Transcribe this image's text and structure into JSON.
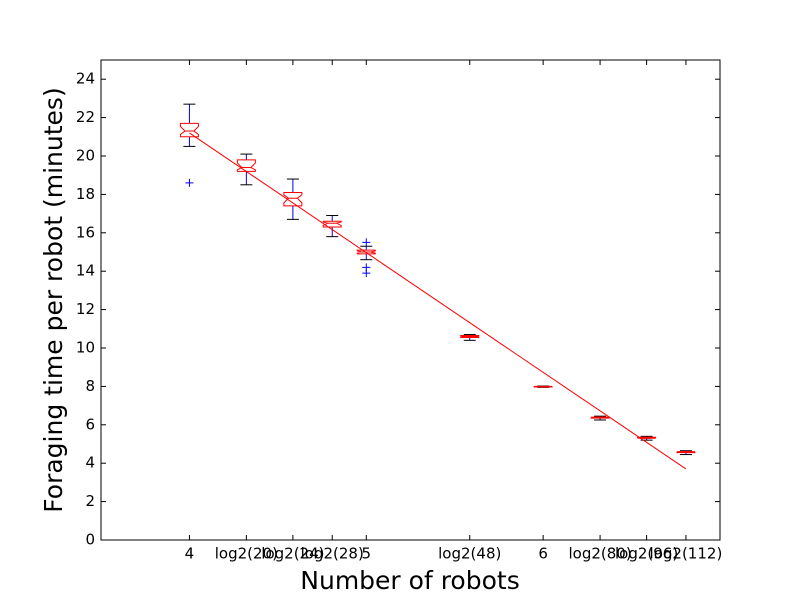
{
  "chart_data": {
    "type": "box",
    "xlabel": "Number of robots",
    "ylabel": "Foraging time per robot (minutes)",
    "xlim": [
      3.5,
      7
    ],
    "ylim": [
      0,
      25
    ],
    "xticks": [
      4,
      {
        "value": 4.3219,
        "label": "log2(20)"
      },
      {
        "value": 4.585,
        "label": "log2(24)"
      },
      {
        "value": 4.8074,
        "label": "log2(28)"
      },
      5,
      {
        "value": 5.585,
        "label": "log2(48)"
      },
      6,
      {
        "value": 6.3219,
        "label": "log2(80)"
      },
      {
        "value": 6.585,
        "label": "log2(96)"
      },
      {
        "value": 6.8074,
        "label": "log2(112)"
      }
    ],
    "yticks": [
      0,
      2,
      4,
      6,
      8,
      10,
      12,
      14,
      16,
      18,
      20,
      22,
      24
    ],
    "box_color": "#ff0000",
    "whisker_color": "#0000ff",
    "cap_color": "#000000",
    "flier_color": "#0000ff",
    "boxes": [
      {
        "x": 4,
        "whislo": 20.5,
        "q1": 21.0,
        "med": 21.3,
        "q3": 21.7,
        "whishi": 22.7,
        "fliers": [
          18.6
        ]
      },
      {
        "x": 4.3219,
        "whislo": 18.5,
        "q1": 19.2,
        "med": 19.4,
        "q3": 19.8,
        "whishi": 20.1,
        "fliers": []
      },
      {
        "x": 4.585,
        "whislo": 16.7,
        "q1": 17.4,
        "med": 17.8,
        "q3": 18.1,
        "whishi": 18.8,
        "fliers": []
      },
      {
        "x": 4.8074,
        "whislo": 15.8,
        "q1": 16.3,
        "med": 16.5,
        "q3": 16.6,
        "whishi": 16.9,
        "fliers": []
      },
      {
        "x": 5,
        "whislo": 14.6,
        "q1": 14.9,
        "med": 15.0,
        "q3": 15.1,
        "whishi": 15.3,
        "fliers": [
          15.5,
          14.2,
          13.9
        ]
      },
      {
        "x": 5.585,
        "whislo": 10.4,
        "q1": 10.55,
        "med": 10.6,
        "q3": 10.65,
        "whishi": 10.7,
        "fliers": []
      },
      {
        "x": 6,
        "whislo": 7.95,
        "q1": 7.97,
        "med": 8.0,
        "q3": 8.0,
        "whishi": 8.02,
        "fliers": []
      },
      {
        "x": 6.3219,
        "whislo": 6.25,
        "q1": 6.35,
        "med": 6.4,
        "q3": 6.4,
        "whishi": 6.45,
        "fliers": []
      },
      {
        "x": 6.585,
        "whislo": 5.2,
        "q1": 5.3,
        "med": 5.3,
        "q3": 5.35,
        "whishi": 5.4,
        "fliers": []
      },
      {
        "x": 6.8074,
        "whislo": 4.45,
        "q1": 4.55,
        "med": 4.6,
        "q3": 4.6,
        "whishi": 4.65,
        "fliers": []
      }
    ],
    "fit": {
      "x": [
        4,
        6.8074
      ],
      "y": [
        21.2,
        3.7
      ],
      "color": "#ff0000"
    }
  }
}
